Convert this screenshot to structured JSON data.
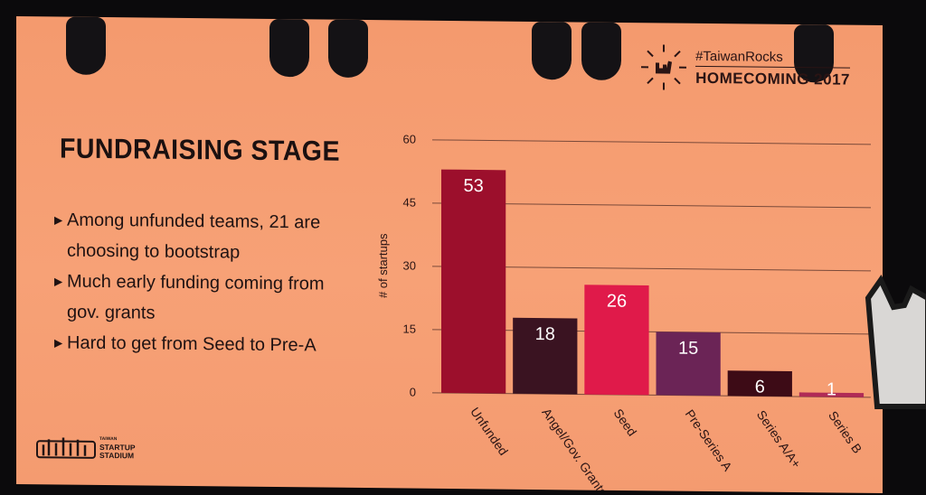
{
  "brand": {
    "hashtag": "#TaiwanRocks",
    "event": "HOMECOMING 2017"
  },
  "slide": {
    "title": "FUNDRAISING STAGE",
    "bullets": [
      "Among unfunded teams, 21 are choosing to bootstrap",
      "Much early funding coming from gov. grants",
      "Hard to get from Seed to Pre-A"
    ]
  },
  "logo": {
    "line1": "TAIWAN",
    "line2": "STARTUP",
    "line3": "STADIUM"
  },
  "colors": {
    "slide_bg": "#f7a176",
    "text": "#1b1010"
  },
  "chart_data": {
    "type": "bar",
    "ylabel": "# of startups",
    "ylim": [
      0,
      60
    ],
    "yticks": [
      0,
      15,
      30,
      45,
      60
    ],
    "grid": true,
    "categories": [
      "Unfunded",
      "Angel/Gov. Grants",
      "Seed",
      "Pre-Series A",
      "Series A/A+",
      "Series B"
    ],
    "values": [
      53,
      18,
      26,
      15,
      6,
      1
    ],
    "colors": [
      "#9c0f2c",
      "#3a1321",
      "#e01a4a",
      "#6b2456",
      "#3d0b16",
      "#b02a56"
    ]
  }
}
